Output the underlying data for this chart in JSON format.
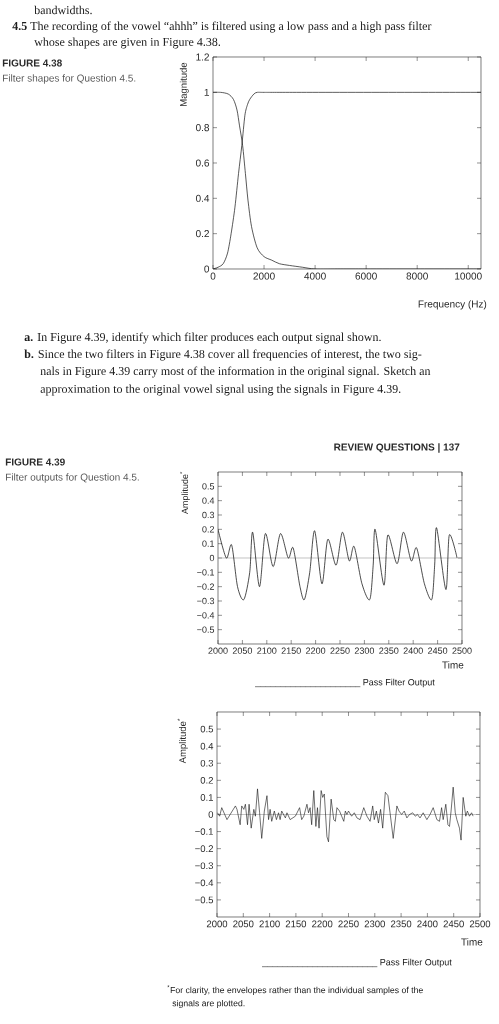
{
  "chart_data": [
    {
      "type": "line",
      "xlabel": "Frequency (Hz)",
      "ylabel": "Magnitude",
      "xlim": [
        0,
        10500
      ],
      "xticks": [
        0,
        2000,
        4000,
        6000,
        8000,
        10000
      ],
      "ylim": [
        0,
        1.2
      ],
      "yticks": [
        0,
        0.2,
        0.4,
        0.6,
        0.8,
        1,
        1.2
      ],
      "series": [
        {
          "color": "#111111",
          "x": [
            0,
            300,
            600,
            800,
            940,
            1040,
            1160,
            1270,
            1370,
            1510,
            1730,
            2000,
            2300,
            2600,
            3000,
            3500,
            4000,
            5000,
            6000,
            8000,
            10500
          ],
          "values": [
            1,
            1,
            0.99,
            0.96,
            0.9,
            0.81,
            0.7,
            0.54,
            0.39,
            0.24,
            0.12,
            0.07,
            0.05,
            0.03,
            0.02,
            0.01,
            0,
            0,
            0,
            0,
            0
          ]
        },
        {
          "color": "#111111",
          "x": [
            0,
            200,
            400,
            570,
            710,
            860,
            1000,
            1130,
            1250,
            1350,
            1440,
            1600,
            1730,
            2000,
            3000,
            10500
          ],
          "values": [
            0,
            0.01,
            0.03,
            0.09,
            0.2,
            0.35,
            0.54,
            0.7,
            0.87,
            0.93,
            0.96,
            0.99,
            1,
            1,
            1,
            1
          ]
        }
      ],
      "annotations": [
        "bandwidths.",
        "**4.5** The recording of the vowel “ahhh” is filtered using a low pass and a high pass filter",
        "whose shapes are given in Figure 4.38.",
        "FIGURE 4.38",
        "Filter shapes for Question 4.5.",
        "**a.** In Figure 4.39, identify which filter produces each output signal shown.",
        "**b.** Since the two filters in Figure 4.38 cover all frequencies of interest, the two sig-",
        "nals in Figure 4.39 carry most of the information in the original signal. Sketch an",
        "approximation to the original vowel signal using the signals in Figure 4.39."
      ]
    },
    {
      "type": "line",
      "xlabel": "Time",
      "ylabel": "Amplitude$^{*}$",
      "xlim": [
        2000,
        2500
      ],
      "xticks": [
        2000,
        2050,
        2100,
        2150,
        2200,
        2250,
        2300,
        2350,
        2400,
        2450,
        2500
      ],
      "ylim": [
        -0.6,
        0.6
      ],
      "yticks": [
        {
          "value": -0.5,
          "label": "−0.5"
        },
        {
          "value": -0.4,
          "label": "−0.4"
        },
        {
          "value": -0.3,
          "label": "−0.3"
        },
        {
          "value": -0.2,
          "label": "−0.2"
        },
        {
          "value": -0.1,
          "label": "−0.1"
        },
        0,
        0.1,
        0.2,
        0.3,
        0.4,
        0.5
      ],
      "ref_lines": [
        {
          "axis": "y",
          "value": 0,
          "color": "#9a9a9a"
        }
      ],
      "series": [
        {
          "color": "#111111",
          "x": [
            2000,
            2017,
            2028,
            2040,
            2053,
            2065,
            2071,
            2085,
            2097,
            2113,
            2128,
            2144,
            2154,
            2168,
            2177,
            2188,
            2198,
            2213,
            2225,
            2242,
            2255,
            2269,
            2279,
            2295,
            2311,
            2318,
            2322,
            2340,
            2348,
            2367,
            2380,
            2396,
            2407,
            2423,
            2438,
            2444,
            2448,
            2467,
            2474,
            2490
          ],
          "values": [
            0.2,
            0,
            0.09,
            -0.2,
            -0.29,
            -0.1,
            0.18,
            -0.2,
            0.17,
            -0.06,
            0.17,
            0,
            0.07,
            -0.2,
            -0.29,
            -0.1,
            0.19,
            -0.18,
            0.13,
            -0.05,
            0.18,
            -0.02,
            0.08,
            -0.18,
            -0.29,
            -0.05,
            0.2,
            -0.19,
            0.16,
            -0.04,
            0.18,
            -0.02,
            0.07,
            -0.18,
            -0.29,
            -0.05,
            0.21,
            -0.22,
            0.16,
            0
          ]
        }
      ],
      "annotations": [
        "REVIEW QUESTIONS | 137",
        "FIGURE 4.39",
        "Filter outputs for Question 4.5.",
        "_____________________ Pass Filter Output"
      ]
    },
    {
      "type": "line",
      "xlabel": "Time",
      "ylabel": "Amplitude$^{*}$",
      "xlim": [
        2000,
        2500
      ],
      "xticks": [
        2000,
        2050,
        2100,
        2150,
        2200,
        2250,
        2300,
        2350,
        2400,
        2450,
        2500
      ],
      "ylim": [
        -0.6,
        0.6
      ],
      "yticks": [
        {
          "value": -0.5,
          "label": "−0.5"
        },
        {
          "value": -0.4,
          "label": "−0.4"
        },
        {
          "value": -0.3,
          "label": "−0.3"
        },
        {
          "value": -0.2,
          "label": "−0.2"
        },
        {
          "value": -0.1,
          "label": "−0.1"
        },
        0,
        0.1,
        0.2,
        0.3,
        0.4,
        0.5
      ],
      "ref_lines": [
        {
          "axis": "y",
          "value": 0,
          "color": "#9a9a9a"
        }
      ],
      "series": [
        {
          "color": "#111111",
          "x": [
            2001,
            2005,
            2009,
            2019,
            2035,
            2038,
            2044,
            2047,
            2051,
            2054,
            2058,
            2061,
            2065,
            2070,
            2073,
            2077,
            2081,
            2085,
            2090,
            2095,
            2098,
            2101,
            2104,
            2109,
            2113,
            2117,
            2120,
            2123,
            2130,
            2133,
            2139,
            2149,
            2157,
            2161,
            2165,
            2171,
            2174,
            2177,
            2180,
            2184,
            2188,
            2191,
            2194,
            2198,
            2201,
            2204,
            2209,
            2212,
            2217,
            2222,
            2225,
            2228,
            2233,
            2237,
            2241,
            2244,
            2247,
            2250,
            2256,
            2261,
            2266,
            2272,
            2279,
            2285,
            2291,
            2296,
            2299,
            2303,
            2307,
            2311,
            2315,
            2320,
            2325,
            2329,
            2335,
            2342,
            2346,
            2351,
            2356,
            2361,
            2366,
            2372,
            2377,
            2381,
            2386,
            2392,
            2399,
            2405,
            2411,
            2418,
            2423,
            2427,
            2430,
            2435,
            2439,
            2442,
            2445,
            2449,
            2453,
            2456,
            2461,
            2464,
            2468,
            2473,
            2476,
            2480,
            2484,
            2487
          ],
          "values": [
            0.01,
            -0.01,
            0.04,
            -0.03,
            0.05,
            0.03,
            -0.06,
            0.05,
            0.03,
            0.06,
            -0.06,
            0.06,
            -0.08,
            0.03,
            -0.01,
            0.15,
            0.01,
            -0.14,
            0.02,
            0.11,
            -0.03,
            0.03,
            -0.04,
            0.02,
            -0.03,
            0.01,
            -0.03,
            0.02,
            -0.02,
            0.01,
            -0.03,
            -0.01,
            0.04,
            -0.03,
            -0.01,
            0.06,
            0.01,
            0.04,
            -0.06,
            0.14,
            -0.07,
            0.04,
            -0.08,
            0.14,
            0.1,
            0.12,
            -0.13,
            -0.16,
            0.09,
            -0.03,
            -0.04,
            0.04,
            0.02,
            -0.01,
            -0.04,
            0.02,
            0,
            0.02,
            -0.01,
            0.01,
            -0.02,
            -0.03,
            0.04,
            -0.01,
            -0.04,
            0.05,
            -0.03,
            0.02,
            -0.05,
            0.03,
            -0.08,
            0.13,
            0.11,
            0.01,
            -0.14,
            0.05,
            0.02,
            0,
            0.02,
            -0.02,
            0,
            0.01,
            -0.01,
            0,
            -0.02,
            0.01,
            -0.03,
            0,
            0.04,
            -0.03,
            -0.04,
            0.04,
            -0.03,
            0.06,
            -0.06,
            -0.07,
            0.02,
            0.16,
            0.01,
            -0.03,
            -0.08,
            -0.15,
            0.1,
            -0.01,
            0.02,
            -0.01,
            0.01,
            -0.01
          ]
        }
      ],
      "annotations": [
        "_______________________ Pass Filter Output",
        "$^{*}$For clarity, the envelopes rather than the individual samples of the",
        "signals are plotted."
      ]
    }
  ]
}
